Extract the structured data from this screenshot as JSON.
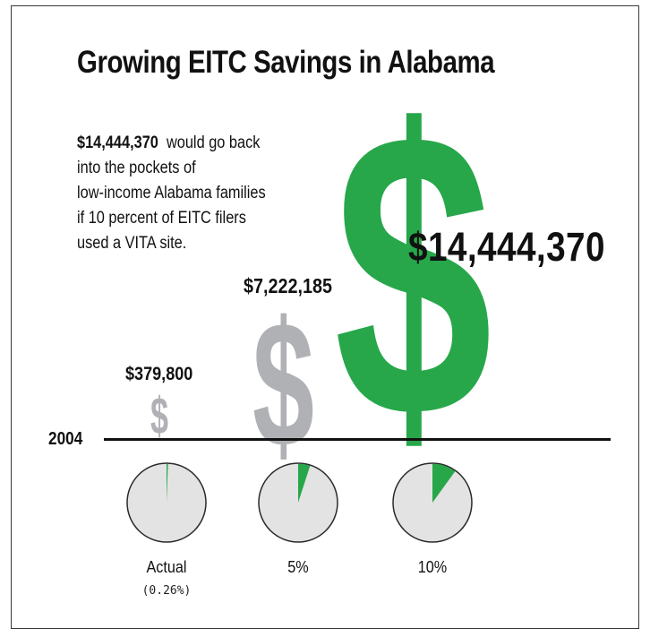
{
  "title": "Growing EITC Savings in Alabama",
  "description": {
    "amount": "$14,444,370",
    "line1_rest": "would go back",
    "line2": "into the pockets of",
    "line3": "low-income Alabama families",
    "line4": "if 10 percent of EITC filers",
    "line5": "used a VITA site."
  },
  "baseline_label": "2004",
  "colors": {
    "green": "#27a74a",
    "gray": "#b0b1b4",
    "pie_bg": "#e3e3e3",
    "pie_border": "#2a2a2a"
  },
  "chart_data": {
    "type": "bar",
    "categories": [
      "Actual",
      "5%",
      "10%"
    ],
    "sublabels": [
      "(0.26%)",
      "",
      ""
    ],
    "values": [
      379800,
      7222185,
      14444370
    ],
    "value_labels": [
      "$379,800",
      "$7,222,185",
      "$14,444,370"
    ],
    "symbol": "$",
    "participation_share": [
      0.26,
      5,
      10
    ],
    "bar_colors": [
      "#b0b1b4",
      "#b0b1b4",
      "#27a74a"
    ]
  }
}
